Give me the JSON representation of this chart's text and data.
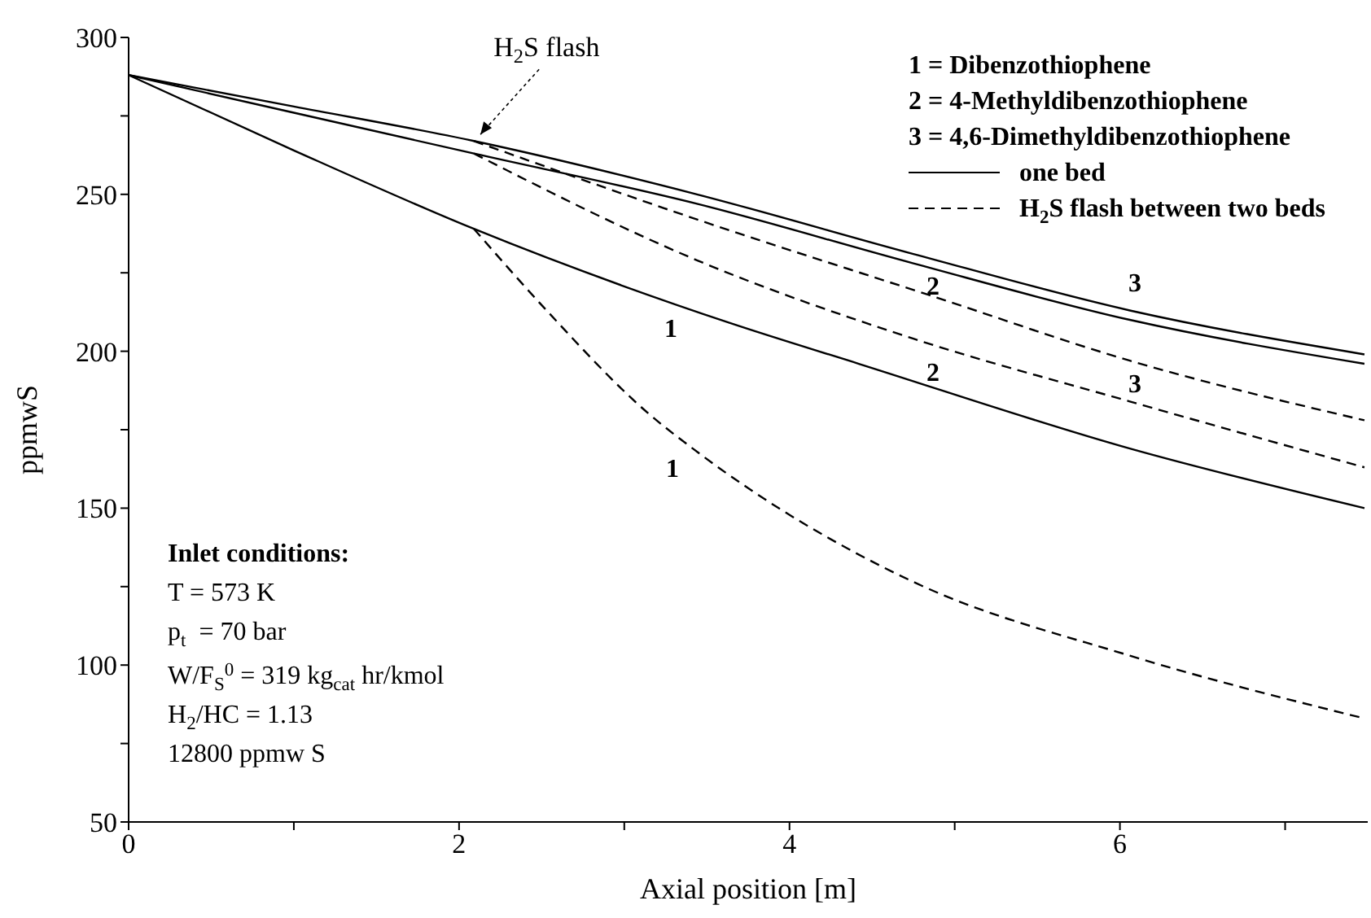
{
  "chart_data": {
    "type": "line",
    "xlabel": "Axial position [m]",
    "ylabel": "ppmwS",
    "xlim": [
      0,
      7.5
    ],
    "xticks": [
      0,
      {
        "value": 1,
        "label": null
      },
      2,
      {
        "value": 3,
        "label": null
      },
      4,
      {
        "value": 5,
        "label": null
      },
      6,
      {
        "value": 7,
        "label": null
      }
    ],
    "ylim": [
      50,
      300
    ],
    "yticks": [
      50,
      {
        "value": 75,
        "label": null
      },
      100,
      {
        "value": 125,
        "label": null
      },
      150,
      {
        "value": 175,
        "label": null
      },
      200,
      {
        "value": 225,
        "label": null
      },
      250,
      {
        "value": 275,
        "label": null
      },
      300
    ],
    "grid": false,
    "marker": "none",
    "series": [
      {
        "color": "#000000",
        "line_style": "solid",
        "x": [
          0,
          1,
          2.09,
          3.64,
          4.42,
          6.06,
          7.48
        ],
        "values": [
          288,
          264,
          239,
          209,
          196,
          169,
          150
        ]
      },
      {
        "color": "#000000",
        "line_style": "solid",
        "x": [
          0,
          1,
          2.09,
          3.44,
          4.75,
          6.06,
          7.48
        ],
        "values": [
          288,
          276,
          263,
          247,
          228,
          210,
          196
        ]
      },
      {
        "color": "#000000",
        "line_style": "solid",
        "x": [
          0,
          1,
          2.09,
          3.44,
          4.75,
          6.06,
          7.48
        ],
        "values": [
          288,
          278,
          267,
          250,
          231,
          213,
          199
        ]
      },
      {
        "color": "#000000",
        "line_style": "dashed",
        "x": [
          2.09,
          2.53,
          3.15,
          3.44,
          4.75,
          6.06,
          7.48
        ],
        "values": [
          239,
          213,
          180,
          168,
          126.5,
          103,
          83
        ]
      },
      {
        "color": "#000000",
        "line_style": "dashed",
        "x": [
          2.09,
          3.44,
          4.75,
          6.06,
          7.48
        ],
        "values": [
          263,
          229,
          204,
          184,
          163
        ]
      },
      {
        "color": "#000000",
        "line_style": "dashed",
        "x": [
          2.09,
          3.44,
          4.84,
          6.06,
          7.48
        ],
        "values": [
          267,
          242,
          218,
          197,
          178
        ]
      }
    ],
    "annotations": [
      "1 = Dibenzothiophene",
      "2 = 4-Methyldibenzothiophene",
      "3 = 4,6-Dimethyldibenzothiophene",
      "one bed",
      "H$_{2}$S flash between two beds",
      "Inlet conditions:",
      "T = 573 K",
      "p$_{t}$  = 70 bar",
      "W/F$_{S}$$^{0}$ = 319 kg$_{cat}$ hr/kmol",
      "H$_{2}$/HC = 1.13",
      "12800 ppmw S",
      {
        "text": "H$_{2}$S flash",
        "x": 2.09,
        "y": 267
      },
      "1",
      "1",
      "2",
      "3",
      "2",
      "3"
    ]
  }
}
